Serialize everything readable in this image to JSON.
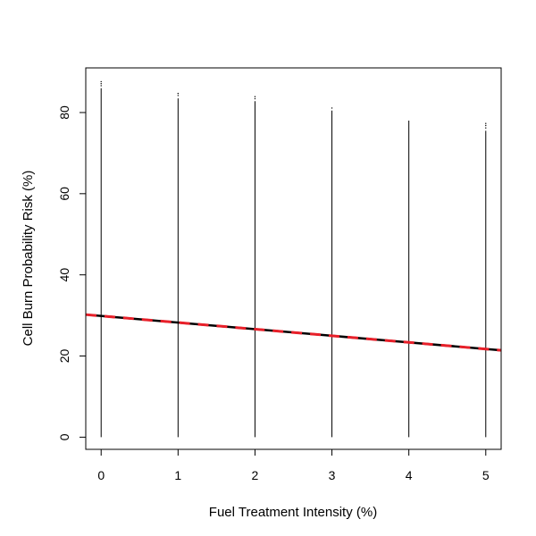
{
  "chart_data": {
    "type": "scatter",
    "title": "",
    "xlabel": "Fuel Treatment Intensity (%)",
    "ylabel": "Cell Burn Probability Risk (%)",
    "xlim": [
      -0.2,
      5.2
    ],
    "ylim": [
      -3,
      91
    ],
    "xticks": [
      "0",
      "1",
      "2",
      "3",
      "4",
      "5"
    ],
    "yticks": [
      "0",
      "20",
      "40",
      "60",
      "80"
    ],
    "grid": false,
    "legend": "none",
    "vertical_ranges": [
      {
        "x": 0,
        "ymin": 0,
        "ymax": 86,
        "outliers": [
          86.6,
          87.1,
          87.6
        ]
      },
      {
        "x": 1,
        "ymin": 0,
        "ymax": 83.5,
        "outliers": [
          84.2,
          84.7
        ]
      },
      {
        "x": 2,
        "ymin": 0,
        "ymax": 82.8,
        "outliers": [
          83.4,
          83.9
        ]
      },
      {
        "x": 3,
        "ymin": 0,
        "ymax": 80.5,
        "outliers": [
          81.1
        ]
      },
      {
        "x": 4,
        "ymin": 0,
        "ymax": 78,
        "outliers": []
      },
      {
        "x": 5,
        "ymin": 0,
        "ymax": 75.5,
        "outliers": [
          76.2,
          76.8,
          77.3
        ]
      }
    ],
    "trend_lines": [
      {
        "color": "#000000",
        "style": "solid",
        "x": [
          -0.2,
          5.2
        ],
        "y": [
          30.2,
          21.4
        ]
      },
      {
        "color": "#e8202a",
        "style": "dashed",
        "x": [
          -0.2,
          5.2
        ],
        "y": [
          30.2,
          21.4
        ]
      }
    ],
    "colors": {
      "points": "#000000",
      "fit_black": "#000000",
      "fit_red": "#e8202a"
    }
  }
}
